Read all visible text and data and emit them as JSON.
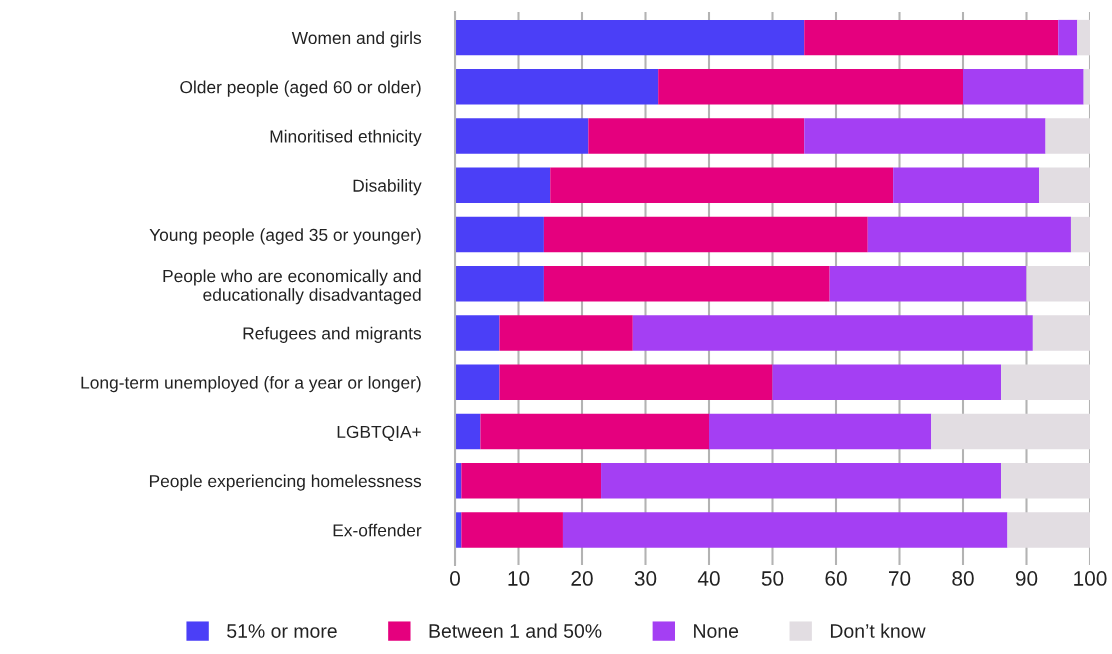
{
  "chart_data": {
    "type": "bar",
    "orientation": "horizontal",
    "stacked": true,
    "categories": [
      "Women and girls",
      "Older people (aged 60 or older)",
      "Minoritised ethnicity",
      "Disability",
      "Young people (aged 35 or younger)",
      "People who are economically and\neducationally disadvantaged",
      "Refugees and migrants",
      "Long-term unemployed (for a year or longer)",
      "LGBTQIA+",
      "People experiencing homelessness",
      "Ex-offender"
    ],
    "series": [
      {
        "name": "51% or more",
        "color": "#4b3ff7",
        "values": [
          55,
          32,
          21,
          15,
          14,
          14,
          7,
          7,
          4,
          1,
          1
        ]
      },
      {
        "name": "Between 1 and 50%",
        "color": "#e5007e",
        "values": [
          40,
          48,
          34,
          54,
          51,
          45,
          21,
          43,
          36,
          22,
          16
        ]
      },
      {
        "name": "None",
        "color": "#a43ff3",
        "values": [
          3,
          19,
          38,
          23,
          32,
          31,
          63,
          36,
          35,
          63,
          70
        ]
      },
      {
        "name": "Don’t know",
        "color": "#e2dde2",
        "values": [
          2,
          1,
          7,
          8,
          3,
          10,
          9,
          14,
          25,
          14,
          13
        ]
      }
    ],
    "xlim": [
      0,
      100
    ],
    "xticks": [
      0,
      10,
      20,
      30,
      40,
      50,
      60,
      70,
      80,
      90,
      100
    ],
    "grid": "x",
    "legend": "bottom"
  }
}
